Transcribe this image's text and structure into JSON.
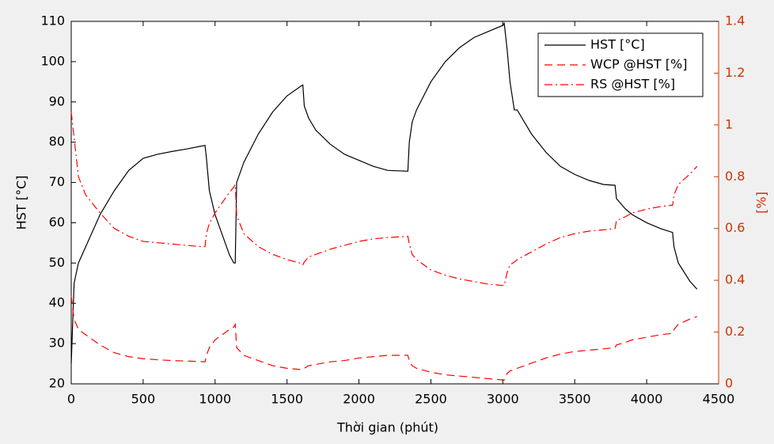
{
  "chart_data": {
    "type": "line",
    "x_label": "Thời gian (phút)",
    "y_label": "HST [°C]",
    "y2_label": "[%]",
    "xlim": [
      0,
      4500
    ],
    "xticks": [
      0,
      500,
      1000,
      1500,
      2000,
      2500,
      3000,
      3500,
      4000,
      4500
    ],
    "ylim": [
      20,
      110
    ],
    "yticks": [
      20,
      30,
      40,
      50,
      60,
      70,
      80,
      90,
      100,
      110
    ],
    "y2lim": [
      0,
      1.4
    ],
    "y2ticks": [
      0,
      0.2,
      0.4,
      0.6,
      0.8,
      1,
      1.2,
      1.4
    ],
    "y2_color": "#cc3300",
    "legend": "upper right",
    "grid": false,
    "x": [
      0,
      20,
      50,
      100,
      200,
      300,
      400,
      500,
      600,
      700,
      800,
      900,
      930,
      940,
      960,
      1000,
      1050,
      1100,
      1130,
      1140,
      1150,
      1200,
      1300,
      1400,
      1500,
      1600,
      1610,
      1620,
      1650,
      1700,
      1800,
      1900,
      2000,
      2100,
      2200,
      2340,
      2350,
      2370,
      2400,
      2500,
      2600,
      2700,
      2800,
      2900,
      3000,
      3010,
      3030,
      3050,
      3080,
      3100,
      3200,
      3300,
      3400,
      3500,
      3600,
      3700,
      3780,
      3790,
      3850,
      3900,
      4000,
      4100,
      4180,
      4190,
      4220,
      4300,
      4350
    ],
    "series": [
      {
        "name": "HST [°C]",
        "color": "#000000",
        "style": "solid",
        "values": [
          25,
          45,
          50,
          54,
          62,
          68,
          73,
          76,
          77,
          77.7,
          78.3,
          79,
          79.2,
          76,
          68,
          62,
          57,
          52,
          50,
          50,
          70,
          75,
          82,
          87.5,
          91.5,
          94,
          94.2,
          89,
          86,
          83,
          79.5,
          77,
          75.5,
          74,
          73,
          72.8,
          80,
          85,
          88,
          95,
          100,
          103.5,
          106,
          107.5,
          109,
          109.5,
          103,
          95,
          88,
          88,
          82,
          77.5,
          74,
          72,
          70.5,
          69.5,
          69.3,
          66,
          63.5,
          62,
          60,
          58.5,
          57.6,
          54,
          50,
          45.5,
          43.5
        ]
      },
      {
        "name": "WCP @HST [%]",
        "color": "#ff0000",
        "style": "dashed",
        "axis": "y2",
        "values": [
          0.34,
          0.25,
          0.21,
          0.19,
          0.15,
          0.12,
          0.105,
          0.097,
          0.093,
          0.09,
          0.088,
          0.086,
          0.085,
          0.11,
          0.14,
          0.17,
          0.19,
          0.21,
          0.22,
          0.23,
          0.14,
          0.11,
          0.09,
          0.07,
          0.06,
          0.055,
          0.055,
          0.06,
          0.07,
          0.075,
          0.085,
          0.09,
          0.1,
          0.105,
          0.11,
          0.11,
          0.09,
          0.07,
          0.06,
          0.045,
          0.035,
          0.03,
          0.025,
          0.02,
          0.015,
          0.015,
          0.04,
          0.05,
          0.055,
          0.06,
          0.08,
          0.1,
          0.115,
          0.125,
          0.13,
          0.135,
          0.14,
          0.15,
          0.16,
          0.17,
          0.18,
          0.19,
          0.195,
          0.21,
          0.23,
          0.25,
          0.26
        ]
      },
      {
        "name": "RS @HST [%]",
        "color": "#ff0000",
        "style": "dashdot",
        "axis": "y2",
        "values": [
          1.05,
          0.95,
          0.8,
          0.73,
          0.66,
          0.6,
          0.57,
          0.55,
          0.545,
          0.54,
          0.535,
          0.53,
          0.53,
          0.58,
          0.62,
          0.66,
          0.7,
          0.74,
          0.76,
          0.77,
          0.65,
          0.58,
          0.53,
          0.5,
          0.48,
          0.465,
          0.46,
          0.47,
          0.49,
          0.5,
          0.52,
          0.535,
          0.55,
          0.56,
          0.565,
          0.57,
          0.54,
          0.5,
          0.48,
          0.44,
          0.42,
          0.405,
          0.395,
          0.385,
          0.38,
          0.38,
          0.43,
          0.46,
          0.47,
          0.48,
          0.51,
          0.54,
          0.565,
          0.58,
          0.59,
          0.595,
          0.6,
          0.63,
          0.645,
          0.66,
          0.675,
          0.685,
          0.69,
          0.73,
          0.77,
          0.81,
          0.84
        ]
      }
    ]
  }
}
